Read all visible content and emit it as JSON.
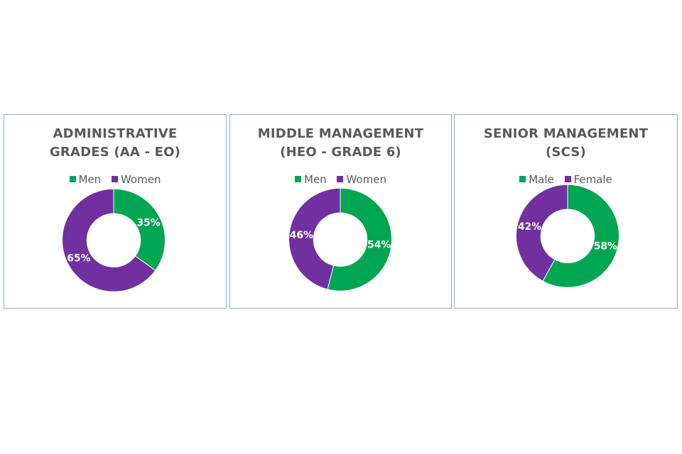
{
  "colors": {
    "men": "#00a651",
    "women": "#7030a0",
    "border": "#8eaadb"
  },
  "chart_data": [
    {
      "type": "pie",
      "variant": "donut",
      "title_lines": [
        "ADMINISTRATIVE",
        "GRADES (AA - EO)"
      ],
      "legend": [
        "Men",
        "Women"
      ],
      "slices": [
        {
          "name": "Men",
          "value": 35,
          "label": "35%"
        },
        {
          "name": "Women",
          "value": 65,
          "label": "65%"
        }
      ]
    },
    {
      "type": "pie",
      "variant": "donut",
      "title_lines": [
        "MIDDLE MANAGEMENT",
        "(HEO - GRADE 6)"
      ],
      "legend": [
        "Men",
        "Women"
      ],
      "slices": [
        {
          "name": "Men",
          "value": 54,
          "label": "54%"
        },
        {
          "name": "Women",
          "value": 46,
          "label": "46%"
        }
      ]
    },
    {
      "type": "pie",
      "variant": "donut",
      "title_lines": [
        "SENIOR MANAGEMENT",
        "(SCS)"
      ],
      "legend": [
        "Male",
        "Female"
      ],
      "slices": [
        {
          "name": "Male",
          "value": 58,
          "label": "58%"
        },
        {
          "name": "Female",
          "value": 42,
          "label": "42%"
        }
      ]
    }
  ]
}
